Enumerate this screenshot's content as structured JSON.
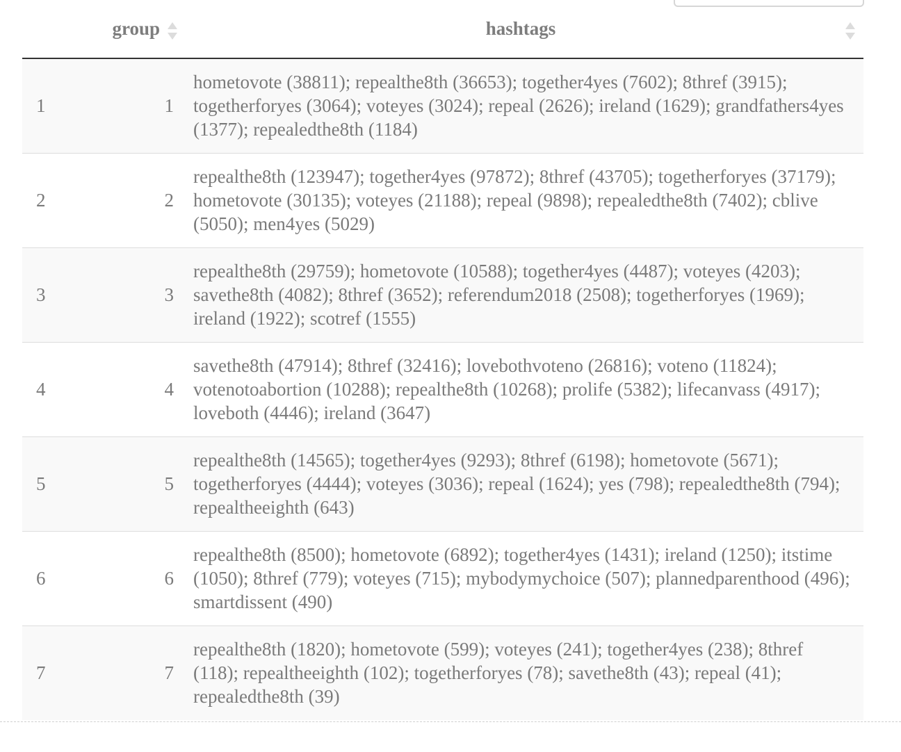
{
  "table": {
    "columns": {
      "index": "",
      "group": "group",
      "hashtags": "hashtags"
    },
    "rows": [
      {
        "index": "1",
        "group": "1",
        "hashtags": "hometovote (38811); repealthe8th (36653); together4yes (7602); 8thref (3915); togetherforyes (3064); voteyes (3024); repeal (2626); ireland (1629); grandfathers4yes (1377); repealedthe8th (1184)"
      },
      {
        "index": "2",
        "group": "2",
        "hashtags": "repealthe8th (123947); together4yes (97872); 8thref (43705); togetherforyes (37179); hometovote (30135); voteyes (21188); repeal (9898); repealedthe8th (7402); cblive (5050); men4yes (5029)"
      },
      {
        "index": "3",
        "group": "3",
        "hashtags": "repealthe8th (29759); hometovote (10588); together4yes (4487); voteyes (4203); savethe8th (4082); 8thref (3652); referendum2018 (2508); togetherforyes (1969); ireland (1922); scotref (1555)"
      },
      {
        "index": "4",
        "group": "4",
        "hashtags": "savethe8th (47914); 8thref (32416); lovebothvoteno (26816); voteno (11824); votenotoabortion (10288); repealthe8th (10268); prolife (5382); lifecanvass (4917); loveboth (4446); ireland (3647)"
      },
      {
        "index": "5",
        "group": "5",
        "hashtags": "repealthe8th (14565); together4yes (9293); 8thref (6198); hometovote (5671); togetherforyes (4444); voteyes (3036); repeal (1624); yes (798); repealedthe8th (794); repealtheeighth (643)"
      },
      {
        "index": "6",
        "group": "6",
        "hashtags": "repealthe8th (8500); hometovote (6892); together4yes (1431); ireland (1250); itstime (1050); 8thref (779); voteyes (715); mybodymychoice (507); plannedparenthood (496); smartdissent (490)"
      },
      {
        "index": "7",
        "group": "7",
        "hashtags": "repealthe8th (1820); hometovote (599); voteyes (241); together4yes (238); 8thref (118); repealtheeighth (102); togetherforyes (78); savethe8th (43); repeal (41); repealedthe8th (39)"
      }
    ]
  }
}
